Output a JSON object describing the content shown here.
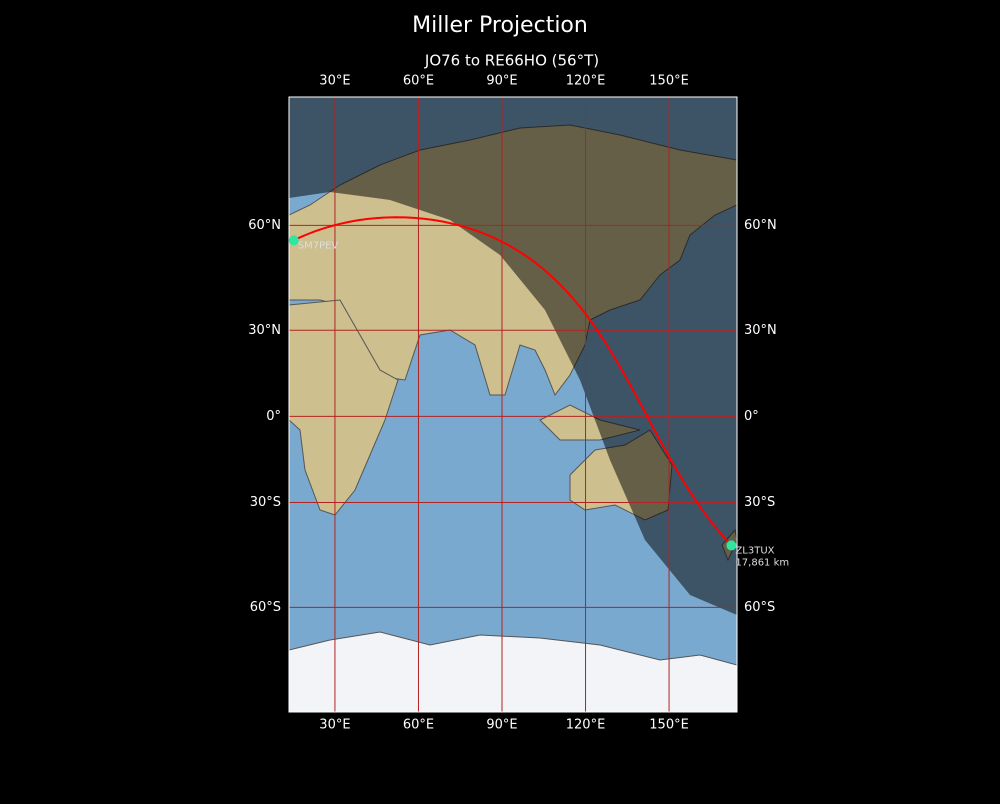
{
  "map": {
    "title": "Miller Projection",
    "subtitle": "JO76 to RE66HO (56°T)",
    "lonlim": [
      13.5,
      174.4
    ],
    "latlim": [
      -80.5,
      84
    ],
    "xticks": [
      {
        "value": 30,
        "label": "30°E"
      },
      {
        "value": 60,
        "label": "60°E"
      },
      {
        "value": 90,
        "label": "90°E"
      },
      {
        "value": 120,
        "label": "120°E"
      },
      {
        "value": 150,
        "label": "150°E"
      }
    ],
    "yticks": [
      {
        "value": 60,
        "label": "60°N"
      },
      {
        "value": 30,
        "label": "30°N"
      },
      {
        "value": 0,
        "label": "0°"
      },
      {
        "value": -30,
        "label": "30°S"
      },
      {
        "value": -60,
        "label": "60°S"
      }
    ],
    "grid_color": "#b22222",
    "path_color": "#ff0000",
    "marker_color": "#2ee6a0",
    "points": [
      {
        "label": "SM7PEV",
        "lon": 15.2,
        "lat": 56.3
      },
      {
        "label": "ZL3TUX",
        "lon": 172.4,
        "lat": -43.4,
        "distance": "17,861 km"
      }
    ]
  }
}
